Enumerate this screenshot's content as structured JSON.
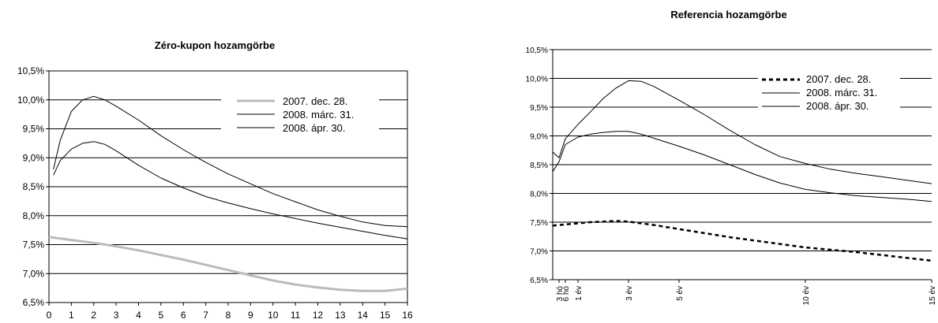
{
  "chart_data": [
    {
      "type": "line",
      "title": "Zéro-kupon hozamgörbe",
      "xlabel": "",
      "ylabel": "",
      "xlim": [
        0,
        16
      ],
      "ylim": [
        6.5,
        10.5
      ],
      "x_ticks": [
        0,
        1,
        2,
        3,
        4,
        5,
        6,
        7,
        8,
        9,
        10,
        11,
        12,
        13,
        14,
        15,
        16
      ],
      "x_tick_labels": [
        "0",
        "1",
        "2",
        "3",
        "4",
        "5",
        "6",
        "7",
        "8",
        "9",
        "10",
        "11",
        "12",
        "13",
        "14",
        "15",
        "16"
      ],
      "y_ticks": [
        6.5,
        7.0,
        7.5,
        8.0,
        8.5,
        9.0,
        9.5,
        10.0,
        10.5
      ],
      "y_tick_labels": [
        "6,5%",
        "7,0%",
        "7,5%",
        "8,0%",
        "8,5%",
        "9,0%",
        "9,5%",
        "10,0%",
        "10,5%"
      ],
      "grid": "horizontal",
      "legend_position": "top-right",
      "series": [
        {
          "name": "2007. dec. 28.",
          "color": "#bbbbbb",
          "style": "thick",
          "x": [
            0,
            1,
            2,
            3,
            4,
            5,
            6,
            7,
            8,
            9,
            10,
            11,
            12,
            13,
            14,
            15,
            16
          ],
          "y": [
            7.63,
            7.58,
            7.53,
            7.47,
            7.4,
            7.32,
            7.24,
            7.15,
            7.06,
            6.97,
            6.88,
            6.81,
            6.76,
            6.72,
            6.7,
            6.7,
            6.74
          ]
        },
        {
          "name": "2008. márc. 31.",
          "color": "#000000",
          "style": "thin",
          "x": [
            0.2,
            0.5,
            1,
            1.5,
            2,
            2.5,
            3,
            4,
            5,
            6,
            7,
            8,
            9,
            10,
            11,
            12,
            13,
            14,
            15,
            16
          ],
          "y": [
            8.8,
            9.3,
            9.8,
            10.0,
            10.06,
            10.0,
            9.89,
            9.65,
            9.38,
            9.14,
            8.92,
            8.72,
            8.55,
            8.38,
            8.24,
            8.1,
            7.99,
            7.89,
            7.83,
            7.81
          ]
        },
        {
          "name": "2008. ápr. 30.",
          "color": "#000000",
          "style": "thin",
          "x": [
            0.2,
            0.5,
            1,
            1.5,
            2,
            2.5,
            3,
            4,
            5,
            6,
            7,
            8,
            9,
            10,
            11,
            12,
            13,
            14,
            15,
            16
          ],
          "y": [
            8.7,
            8.95,
            9.15,
            9.25,
            9.28,
            9.23,
            9.12,
            8.87,
            8.65,
            8.48,
            8.33,
            8.22,
            8.12,
            8.03,
            7.95,
            7.87,
            7.8,
            7.73,
            7.66,
            7.6
          ]
        }
      ]
    },
    {
      "type": "line",
      "title": "Referencia hozamgörbe",
      "xlabel": "",
      "ylabel": "",
      "xlim": [
        0,
        15
      ],
      "ylim": [
        6.5,
        10.5
      ],
      "x_ticks": [
        0.25,
        0.5,
        1,
        3,
        5,
        10,
        15
      ],
      "x_tick_labels": [
        "3 hó",
        "6 hó",
        "1 év",
        "3 év",
        "5 év",
        "10 év",
        "15 év"
      ],
      "y_ticks": [
        6.5,
        7.0,
        7.5,
        8.0,
        8.5,
        9.0,
        9.5,
        10.0,
        10.5
      ],
      "y_tick_labels": [
        "6,5%",
        "7,0%",
        "7,5%",
        "8,0%",
        "8,5%",
        "9,0%",
        "9,5%",
        "10,0%",
        "10,5%"
      ],
      "grid": "horizontal",
      "legend_position": "top-right",
      "series": [
        {
          "name": "2007. dec. 28.",
          "color": "#000000",
          "style": "dashed",
          "x": [
            0,
            0.25,
            0.5,
            1,
            1.5,
            2,
            2.5,
            3,
            4,
            5,
            6,
            7,
            8,
            9,
            10,
            11,
            12,
            13,
            14,
            15
          ],
          "y": [
            7.44,
            7.45,
            7.46,
            7.48,
            7.5,
            7.51,
            7.52,
            7.51,
            7.45,
            7.38,
            7.31,
            7.24,
            7.18,
            7.12,
            7.06,
            7.02,
            6.98,
            6.93,
            6.88,
            6.83
          ]
        },
        {
          "name": "2008. márc. 31.",
          "color": "#000000",
          "style": "thin",
          "x": [
            0,
            0.25,
            0.5,
            1,
            1.5,
            2,
            2.5,
            3,
            3.5,
            4,
            5,
            6,
            7,
            8,
            9,
            10,
            11,
            12,
            13,
            14,
            15
          ],
          "y": [
            8.72,
            8.62,
            8.95,
            9.2,
            9.42,
            9.65,
            9.83,
            9.96,
            9.95,
            9.86,
            9.62,
            9.37,
            9.1,
            8.85,
            8.64,
            8.52,
            8.42,
            8.35,
            8.29,
            8.23,
            8.17
          ]
        },
        {
          "name": "2008. ápr. 30.",
          "color": "#000000",
          "style": "thin",
          "x": [
            0,
            0.25,
            0.5,
            1,
            1.5,
            2,
            2.5,
            3,
            3.5,
            4,
            5,
            6,
            7,
            8,
            9,
            10,
            11,
            12,
            13,
            14,
            15
          ],
          "y": [
            8.38,
            8.55,
            8.85,
            8.98,
            9.03,
            9.06,
            9.08,
            9.08,
            9.03,
            8.96,
            8.82,
            8.67,
            8.5,
            8.33,
            8.18,
            8.07,
            8.01,
            7.96,
            7.93,
            7.9,
            7.86
          ]
        }
      ]
    }
  ]
}
